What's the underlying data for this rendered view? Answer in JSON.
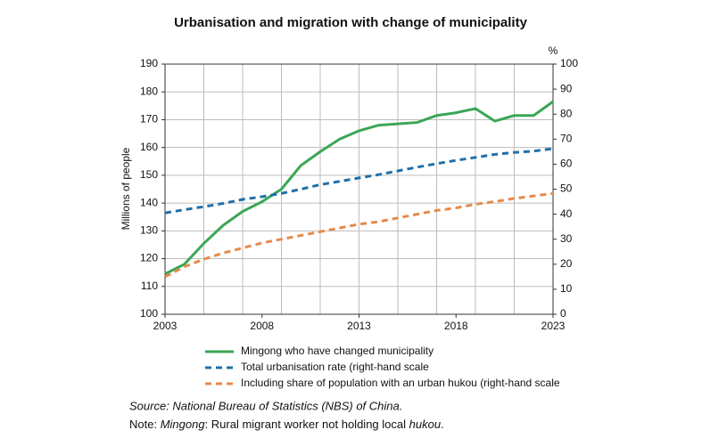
{
  "chart_data": {
    "type": "line",
    "title": "Urbanisation and migration with change of municipality",
    "y_label": "Millions of people",
    "y2_label": "%",
    "x": [
      2003,
      2004,
      2005,
      2006,
      2007,
      2008,
      2009,
      2010,
      2011,
      2012,
      2013,
      2014,
      2015,
      2016,
      2017,
      2018,
      2019,
      2020,
      2021,
      2022,
      2023
    ],
    "xlim": [
      2003,
      2023
    ],
    "xticks": [
      2003,
      2008,
      2013,
      2018,
      2023
    ],
    "xgrid": [
      2005,
      2007,
      2009,
      2011,
      2013,
      2015,
      2017,
      2019,
      2021
    ],
    "ylim": [
      100,
      190
    ],
    "yticks": [
      100,
      110,
      120,
      130,
      140,
      150,
      160,
      170,
      180,
      190
    ],
    "y2lim": [
      0,
      100
    ],
    "y2ticks": [
      0,
      10,
      20,
      30,
      40,
      50,
      60,
      70,
      80,
      90,
      100
    ],
    "grid": true,
    "series": [
      {
        "name": "Mingong who have changed municipality",
        "color": "#3aa655",
        "dash": false,
        "values": [
          114.5,
          118,
          125.5,
          132,
          137,
          140.5,
          145,
          153.5,
          158.5,
          163,
          166,
          168,
          168.5,
          169,
          171.5,
          172.5,
          174,
          169.5,
          171.5,
          171.5,
          176.5
        ]
      },
      {
        "name": "Total urbanisation rate (right-hand scale",
        "color": "#1f6fa8",
        "dash": true,
        "axis": "y2",
        "values": [
          40.5,
          41.8,
          43,
          44.3,
          45.9,
          47,
          48.3,
          50,
          51.8,
          53.1,
          54.5,
          55.8,
          57.3,
          58.8,
          60.2,
          61.5,
          62.7,
          63.9,
          64.7,
          65.2,
          66.2
        ]
      },
      {
        "name": "Including share of population with an urban hukou (right-hand scale",
        "color": "#e58a4a",
        "dash": true,
        "axis": "y2",
        "values": [
          15,
          19,
          22,
          24.5,
          26.5,
          28.5,
          30,
          31.5,
          33,
          34.5,
          36,
          37,
          38.5,
          40,
          41.5,
          42.5,
          44,
          45,
          46.3,
          47.3,
          48.3
        ]
      }
    ],
    "source": "Source: National Bureau of Statistics (NBS) of China.",
    "note": [
      "Note: ",
      "Mingong",
      ": Rural migrant worker not holding local ",
      "hukou",
      "."
    ]
  }
}
